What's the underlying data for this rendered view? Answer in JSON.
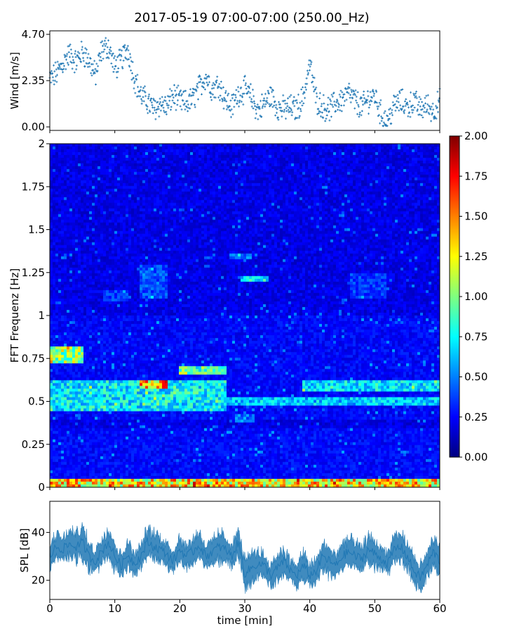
{
  "title": "2017-05-19 07:00-07:00 (250.00_Hz)",
  "colors": {
    "series": "#1f77b4",
    "axis": "#000000",
    "background": "#ffffff",
    "colormap": "jet"
  },
  "chart_data": [
    {
      "id": "wind",
      "type": "scatter",
      "ylabel": "Wind [m/s]",
      "xlabel": "",
      "xlim": [
        0,
        60
      ],
      "ylim": [
        0,
        4.7
      ],
      "yticks": [
        "0.00",
        "2.35",
        "4.70"
      ],
      "marker": "+",
      "x": [
        0,
        1,
        2,
        3,
        4,
        5,
        6,
        7,
        8,
        9,
        10,
        11,
        12,
        13,
        14,
        15,
        16,
        17,
        18,
        19,
        20,
        21,
        22,
        23,
        24,
        25,
        26,
        27,
        28,
        29,
        30,
        31,
        32,
        33,
        34,
        35,
        36,
        37,
        38,
        39,
        40,
        41,
        42,
        43,
        44,
        45,
        46,
        47,
        48,
        49,
        50,
        51,
        52,
        53,
        54,
        55,
        56,
        57,
        58,
        59,
        60
      ],
      "y": [
        2.4,
        2.7,
        3.2,
        3.7,
        3.3,
        3.8,
        3.4,
        2.6,
        3.9,
        4.1,
        3.0,
        3.4,
        4.0,
        2.5,
        1.6,
        1.3,
        0.9,
        1.2,
        1.0,
        1.6,
        1.3,
        1.2,
        1.4,
        2.0,
        2.6,
        1.9,
        2.2,
        1.4,
        1.0,
        1.7,
        1.9,
        1.5,
        0.8,
        1.2,
        1.6,
        1.0,
        0.9,
        1.0,
        0.9,
        1.5,
        3.2,
        1.4,
        1.0,
        0.9,
        1.2,
        1.4,
        1.7,
        1.3,
        1.0,
        1.4,
        1.6,
        0.6,
        0.3,
        1.1,
        1.3,
        1.0,
        1.3,
        0.9,
        1.1,
        0.8,
        1.3
      ]
    },
    {
      "id": "spectrogram",
      "type": "heatmap",
      "ylabel": "FFT Frequenz [Hz]",
      "xlabel": "",
      "xlim": [
        0,
        60
      ],
      "ylim": [
        0,
        2
      ],
      "yticks": [
        "0",
        "0.25",
        "0.5",
        "0.75",
        "1",
        "1.25",
        "1.5",
        "1.75",
        "2"
      ],
      "colorbar": {
        "range": [
          0,
          2
        ],
        "ticks": [
          "0.00",
          "0.25",
          "0.50",
          "0.75",
          "1.00",
          "1.25",
          "1.50",
          "1.75",
          "2.00"
        ],
        "colormap": "jet"
      },
      "features": [
        {
          "band_hz": [
            0,
            0.05
          ],
          "x": [
            0,
            60
          ],
          "level": 1.6
        },
        {
          "band_hz": [
            0.45,
            0.62
          ],
          "x": [
            0,
            27
          ],
          "level": 0.9
        },
        {
          "band_hz": [
            0.58,
            0.62
          ],
          "x": [
            14,
            18
          ],
          "level": 1.7
        },
        {
          "band_hz": [
            0.54,
            0.58
          ],
          "x": [
            19,
            23
          ],
          "level": 1.0
        },
        {
          "band_hz": [
            0.65,
            0.7
          ],
          "x": [
            20,
            27
          ],
          "level": 1.1
        },
        {
          "band_hz": [
            0.72,
            0.82
          ],
          "x": [
            0,
            5
          ],
          "level": 1.3
        },
        {
          "band_hz": [
            0.47,
            0.52
          ],
          "x": [
            27,
            60
          ],
          "level": 0.8
        },
        {
          "band_hz": [
            0.55,
            0.62
          ],
          "x": [
            39,
            60
          ],
          "level": 0.85
        },
        {
          "band_hz": [
            1.2,
            1.23
          ],
          "x": [
            29.5,
            33.5
          ],
          "level": 0.9
        },
        {
          "band_hz": [
            1.33,
            1.36
          ],
          "x": [
            27.5,
            31
          ],
          "level": 0.6
        },
        {
          "band_hz": [
            0.38,
            0.42
          ],
          "x": [
            28.5,
            31.5
          ],
          "level": 0.6
        },
        {
          "band_hz": [
            1.1,
            1.3
          ],
          "x": [
            14,
            18
          ],
          "level": 0.5
        },
        {
          "band_hz": [
            1.08,
            1.15
          ],
          "x": [
            8,
            12
          ],
          "level": 0.45
        },
        {
          "band_hz": [
            1.1,
            1.25
          ],
          "x": [
            46,
            52
          ],
          "level": 0.45
        }
      ]
    },
    {
      "id": "spl",
      "type": "area",
      "ylabel": "SPL [dB]",
      "xlabel": "time [min]",
      "xlim": [
        0,
        60
      ],
      "ylim": [
        12,
        53
      ],
      "yticks": [
        "20",
        "40"
      ],
      "xticks": [
        "0",
        "10",
        "20",
        "30",
        "40",
        "50",
        "60"
      ],
      "x": [
        0,
        1,
        2,
        3,
        4,
        5,
        6,
        7,
        8,
        9,
        10,
        11,
        12,
        13,
        14,
        15,
        16,
        17,
        18,
        19,
        20,
        21,
        22,
        23,
        24,
        25,
        26,
        27,
        28,
        29,
        30,
        31,
        32,
        33,
        34,
        35,
        36,
        37,
        38,
        39,
        40,
        41,
        42,
        43,
        44,
        45,
        46,
        47,
        48,
        49,
        50,
        51,
        52,
        53,
        54,
        55,
        56,
        57,
        58,
        59,
        60
      ],
      "y": [
        30,
        34,
        33,
        35,
        34,
        36,
        30,
        28,
        32,
        36,
        30,
        26,
        31,
        27,
        30,
        36,
        34,
        33,
        31,
        28,
        33,
        30,
        32,
        35,
        30,
        32,
        34,
        33,
        30,
        36,
        23,
        25,
        27,
        26,
        22,
        25,
        28,
        24,
        22,
        26,
        22,
        24,
        30,
        28,
        26,
        30,
        32,
        30,
        29,
        33,
        31,
        29,
        27,
        33,
        34,
        30,
        24,
        21,
        26,
        32,
        28
      ],
      "band": [
        4,
        5,
        4,
        5,
        5,
        6,
        5,
        4,
        5,
        6,
        5,
        4,
        5,
        4,
        4,
        5,
        5,
        5,
        4,
        4,
        5,
        4,
        5,
        5,
        4,
        4,
        5,
        5,
        4,
        5,
        5,
        5,
        5,
        4,
        4,
        5,
        5,
        4,
        4,
        5,
        4,
        4,
        5,
        5,
        4,
        5,
        5,
        5,
        4,
        5,
        5,
        4,
        4,
        5,
        5,
        5,
        5,
        5,
        4,
        5,
        5
      ]
    }
  ]
}
